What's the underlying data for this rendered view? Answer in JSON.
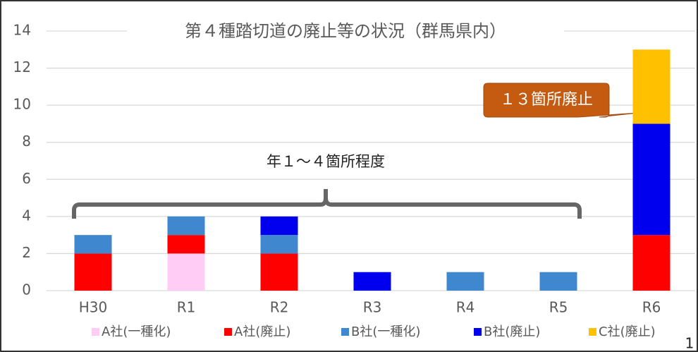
{
  "chart_data": {
    "type": "stacked_bar",
    "title": "第４種踏切道の廃止等の状況（群馬県内）",
    "categories": [
      "H30",
      "R1",
      "R2",
      "R3",
      "R4",
      "R5",
      "R6"
    ],
    "series": [
      {
        "name": "A社(一種化)",
        "color": "#ffccf5",
        "values": [
          0,
          2,
          0,
          0,
          0,
          0,
          0
        ]
      },
      {
        "name": "A社(廃止)",
        "color": "#ff0000",
        "values": [
          2,
          1,
          2,
          0,
          0,
          0,
          3
        ]
      },
      {
        "name": "B社(一種化)",
        "color": "#3f88cf",
        "values": [
          1,
          1,
          1,
          0,
          1,
          1,
          0
        ]
      },
      {
        "name": "B社(廃止)",
        "color": "#0000ee",
        "values": [
          0,
          0,
          1,
          1,
          0,
          0,
          6
        ]
      },
      {
        "name": "C社(廃止)",
        "color": "#ffc000",
        "values": [
          0,
          0,
          0,
          0,
          0,
          0,
          4
        ]
      }
    ],
    "ylim": [
      0,
      14
    ],
    "yticks": [
      0,
      2,
      4,
      6,
      8,
      10,
      12,
      14
    ],
    "grid": true,
    "legend": "bottom",
    "annotations": [
      "１３箇所廃止",
      "年１～４箇所程度"
    ],
    "page_number": "1"
  }
}
